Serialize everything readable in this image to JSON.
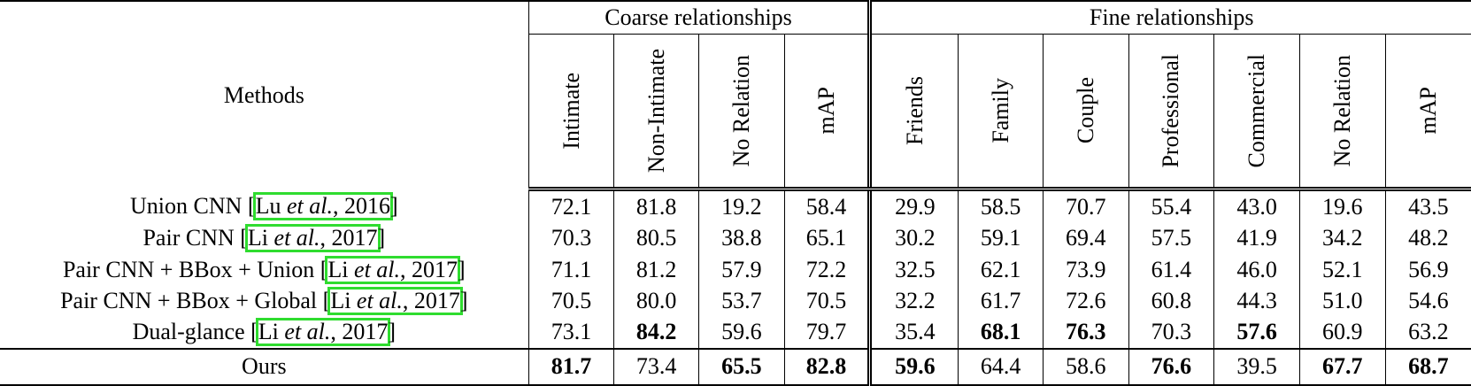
{
  "table": {
    "methods_header": "Methods",
    "coarse_header": "Coarse relationships",
    "fine_header": "Fine relationships",
    "coarse_columns": [
      "Intimate",
      "Non-Intimate",
      "No Relation",
      "mAP"
    ],
    "fine_columns": [
      "Friends",
      "Family",
      "Couple",
      "Professional",
      "Commercial",
      "No Relation",
      "mAP"
    ],
    "rows": [
      {
        "method": "Union CNN",
        "cite_author": "Lu",
        "cite_etal": "et al.",
        "cite_year": ", 2016",
        "coarse": [
          "72.1",
          "81.8",
          "19.2",
          "58.4"
        ],
        "fine": [
          "29.9",
          "58.5",
          "70.7",
          "55.4",
          "43.0",
          "19.6",
          "43.5"
        ]
      },
      {
        "method": "Pair CNN",
        "cite_author": "Li",
        "cite_etal": "et al.",
        "cite_year": ", 2017",
        "coarse": [
          "70.3",
          "80.5",
          "38.8",
          "65.1"
        ],
        "fine": [
          "30.2",
          "59.1",
          "69.4",
          "57.5",
          "41.9",
          "34.2",
          "48.2"
        ]
      },
      {
        "method": "Pair CNN + BBox + Union",
        "cite_author": "Li",
        "cite_etal": "et al.",
        "cite_year": ", 2017",
        "coarse": [
          "71.1",
          "81.2",
          "57.9",
          "72.2"
        ],
        "fine": [
          "32.5",
          "62.1",
          "73.9",
          "61.4",
          "46.0",
          "52.1",
          "56.9"
        ]
      },
      {
        "method": "Pair CNN + BBox + Global",
        "cite_author": "Li",
        "cite_etal": "et al.",
        "cite_year": ", 2017",
        "coarse": [
          "70.5",
          "80.0",
          "53.7",
          "70.5"
        ],
        "fine": [
          "32.2",
          "61.7",
          "72.6",
          "60.8",
          "44.3",
          "51.0",
          "54.6"
        ]
      },
      {
        "method": "Dual-glance",
        "cite_author": "Li",
        "cite_etal": "et al.",
        "cite_year": ", 2017",
        "coarse": [
          "73.1",
          "84.2",
          "59.6",
          "79.7"
        ],
        "fine": [
          "35.4",
          "68.1",
          "76.3",
          "70.3",
          "57.6",
          "60.9",
          "63.2"
        ]
      }
    ],
    "ours": {
      "method": "Ours",
      "coarse": [
        "81.7",
        "73.4",
        "65.5",
        "82.8"
      ],
      "fine": [
        "59.6",
        "64.4",
        "58.6",
        "76.6",
        "39.5",
        "67.7",
        "68.7"
      ]
    },
    "citation_highlight_color": "#2fdc2f"
  }
}
